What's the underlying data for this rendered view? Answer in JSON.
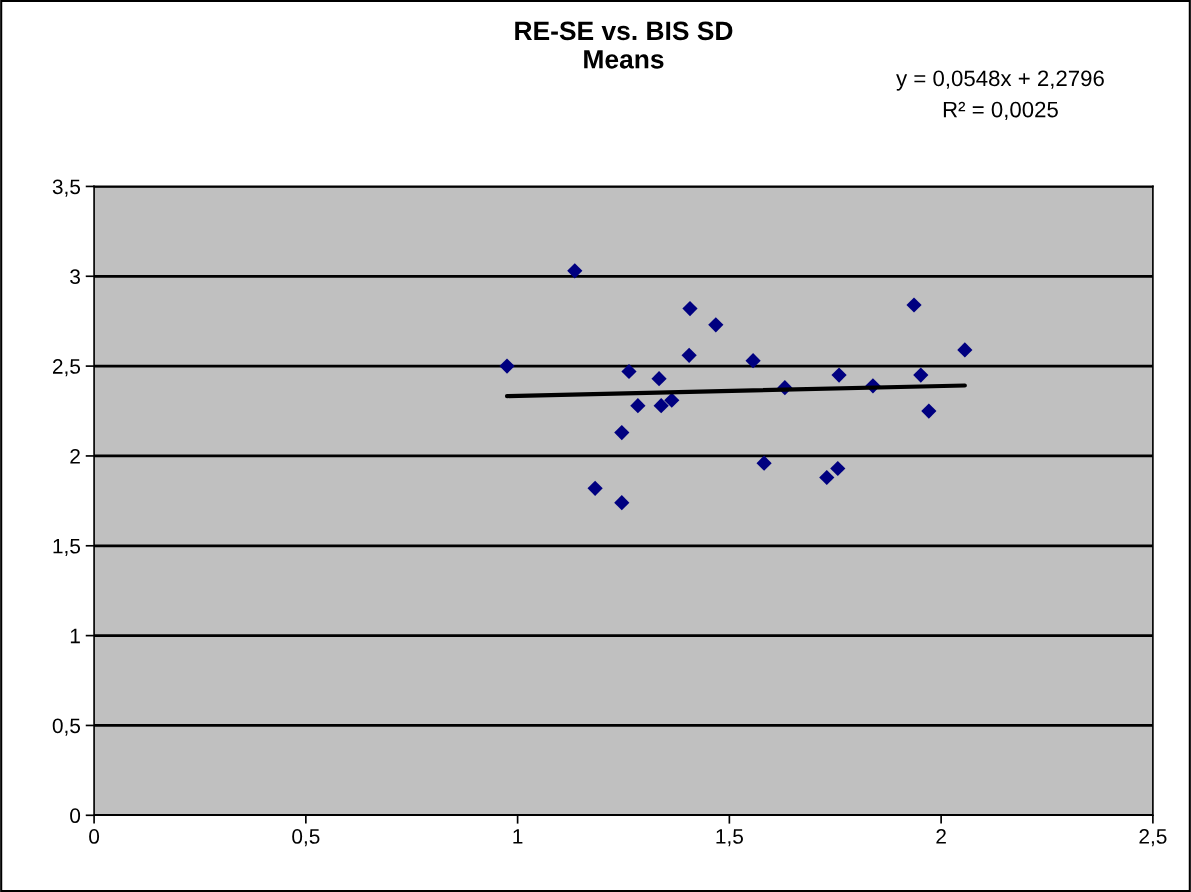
{
  "chart_data": {
    "type": "scatter",
    "title": "RE-SE vs. BIS SD\nMeans",
    "annotations": [
      "y = 0,0548x + 2,2796",
      "R² = 0,0025"
    ],
    "series": [
      {
        "color": "#000080",
        "marker": "diamond",
        "x": [
          0.975,
          1.135,
          1.183,
          1.246,
          1.246,
          1.263,
          1.284,
          1.334,
          1.339,
          1.364,
          1.405,
          1.407,
          1.468,
          1.556,
          1.582,
          1.631,
          1.73,
          1.756,
          1.759,
          1.839,
          1.936,
          1.952,
          1.971,
          2.056
        ],
        "values": [
          2.5,
          3.03,
          1.82,
          2.13,
          1.74,
          2.47,
          2.28,
          2.43,
          2.28,
          2.31,
          2.56,
          2.82,
          2.73,
          2.53,
          1.96,
          2.38,
          1.88,
          1.93,
          2.45,
          2.39,
          2.84,
          2.45,
          2.25,
          2.59
        ]
      },
      {
        "type": "line",
        "color": "#000000",
        "marker": "none",
        "line_style": "solid",
        "x": [
          0.975,
          2.056
        ],
        "values": [
          2.333,
          2.392
        ]
      }
    ],
    "xlim": [
      0,
      2.5
    ],
    "ylim": [
      0,
      3.5
    ],
    "xticks": [
      0,
      {
        "value": 0.5,
        "label": "0,5"
      },
      1,
      {
        "value": 1.5,
        "label": "1,5"
      },
      2,
      {
        "value": 2.5,
        "label": "2,5"
      }
    ],
    "yticks": [
      0,
      {
        "value": 0.5,
        "label": "0,5"
      },
      1,
      {
        "value": 1.5,
        "label": "1,5"
      },
      2,
      {
        "value": 2.5,
        "label": "2,5"
      },
      3,
      {
        "value": 3.5,
        "label": "3,5"
      }
    ],
    "grid": "y",
    "legend": false
  }
}
